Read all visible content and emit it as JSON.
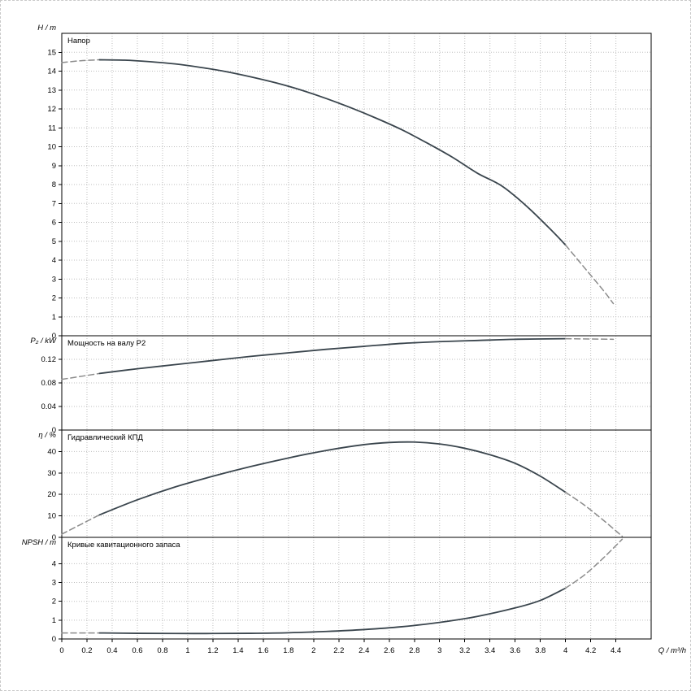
{
  "page": {
    "background": "#ffffff"
  },
  "colors": {
    "curve": "#3a454d",
    "dashed_curve": "#8c8c8c",
    "grid": "#bdbdbd",
    "axis": "#000000"
  },
  "chart_data": {
    "type": "line",
    "x_axis": {
      "label": "Q / m³/h",
      "min": 0,
      "max": 4.68,
      "grid": true,
      "tick_values": [
        0,
        0.2,
        0.4,
        0.6,
        0.8,
        1,
        1.2,
        1.4,
        1.6,
        1.8,
        2,
        2.2,
        2.4,
        2.6,
        2.8,
        3,
        3.2,
        3.4,
        3.6,
        3.8,
        4,
        4.2,
        4.4
      ],
      "tick_labels": [
        "0",
        "0.2",
        "0.4",
        "0.6",
        "0.8",
        "1",
        "1.2",
        "1.4",
        "1.6",
        "1.8",
        "2",
        "2.2",
        "2.4",
        "2.6",
        "2.8",
        "3",
        "3.2",
        "3.4",
        "3.6",
        "3.8",
        "4",
        "4.2",
        "4.4"
      ]
    },
    "panels": [
      {
        "title": "Напор",
        "y_label": "H / m",
        "ylim": [
          0,
          16
        ],
        "y_ticks": [
          0,
          1,
          2,
          3,
          4,
          5,
          6,
          7,
          8,
          9,
          10,
          11,
          12,
          13,
          14,
          15
        ],
        "y_tick_labels": [
          "0",
          "1",
          "2",
          "3",
          "4",
          "5",
          "6",
          "7",
          "8",
          "9",
          "10",
          "11",
          "12",
          "13",
          "14",
          "15"
        ],
        "series": [
          {
            "name": "head-curve-dashed-left",
            "style": "dashed",
            "points": [
              [
                0,
                14.45
              ],
              [
                0.15,
                14.55
              ],
              [
                0.3,
                14.6
              ]
            ]
          },
          {
            "name": "head-curve",
            "style": "solid",
            "points": [
              [
                0.3,
                14.6
              ],
              [
                0.5,
                14.58
              ],
              [
                0.7,
                14.5
              ],
              [
                0.9,
                14.38
              ],
              [
                1.1,
                14.2
              ],
              [
                1.3,
                13.98
              ],
              [
                1.5,
                13.7
              ],
              [
                1.7,
                13.38
              ],
              [
                1.9,
                13.0
              ],
              [
                2.1,
                12.55
              ],
              [
                2.3,
                12.05
              ],
              [
                2.5,
                11.5
              ],
              [
                2.7,
                10.9
              ],
              [
                2.9,
                10.2
              ],
              [
                3.1,
                9.45
              ],
              [
                3.3,
                8.6
              ],
              [
                3.5,
                7.9
              ],
              [
                3.7,
                6.8
              ],
              [
                3.9,
                5.5
              ],
              [
                4.0,
                4.8
              ]
            ]
          },
          {
            "name": "head-curve-dashed-right",
            "style": "dashed",
            "points": [
              [
                4.0,
                4.8
              ],
              [
                4.15,
                3.6
              ],
              [
                4.3,
                2.4
              ],
              [
                4.38,
                1.7
              ]
            ]
          }
        ]
      },
      {
        "title": "Мощность на валу P2",
        "y_label": "P₂ / kW",
        "ylim": [
          0,
          0.16
        ],
        "y_ticks": [
          0,
          0.04,
          0.08,
          0.12
        ],
        "y_tick_labels": [
          "0",
          "0.04",
          "0.08",
          "0.12"
        ],
        "series": [
          {
            "name": "power-curve-dashed-left",
            "style": "dashed",
            "points": [
              [
                0,
                0.086
              ],
              [
                0.3,
                0.096
              ]
            ]
          },
          {
            "name": "power-curve",
            "style": "solid",
            "points": [
              [
                0.3,
                0.096
              ],
              [
                0.6,
                0.104
              ],
              [
                0.9,
                0.111
              ],
              [
                1.2,
                0.118
              ],
              [
                1.5,
                0.125
              ],
              [
                1.8,
                0.131
              ],
              [
                2.1,
                0.137
              ],
              [
                2.4,
                0.142
              ],
              [
                2.7,
                0.147
              ],
              [
                3.0,
                0.15
              ],
              [
                3.3,
                0.152
              ],
              [
                3.6,
                0.154
              ],
              [
                4.0,
                0.155
              ]
            ]
          },
          {
            "name": "power-curve-dashed-right",
            "style": "dashed",
            "points": [
              [
                4.0,
                0.155
              ],
              [
                4.38,
                0.154
              ]
            ]
          }
        ]
      },
      {
        "title": "Гидравлический КПД",
        "y_label": "η / %",
        "ylim": [
          0,
          50
        ],
        "y_ticks": [
          0,
          10,
          20,
          30,
          40
        ],
        "y_tick_labels": [
          "0",
          "10",
          "20",
          "30",
          "40"
        ],
        "series": [
          {
            "name": "efficiency-curve-dashed-left",
            "style": "dashed",
            "points": [
              [
                0,
                1.5
              ],
              [
                0.15,
                6
              ],
              [
                0.3,
                10.5
              ]
            ]
          },
          {
            "name": "efficiency-curve",
            "style": "solid",
            "points": [
              [
                0.3,
                10.5
              ],
              [
                0.6,
                17.5
              ],
              [
                0.9,
                23.5
              ],
              [
                1.2,
                28.5
              ],
              [
                1.5,
                33
              ],
              [
                1.8,
                37
              ],
              [
                2.1,
                40.5
              ],
              [
                2.4,
                43.2
              ],
              [
                2.6,
                44.2
              ],
              [
                2.8,
                44.4
              ],
              [
                3.0,
                43.5
              ],
              [
                3.2,
                41.5
              ],
              [
                3.4,
                38.5
              ],
              [
                3.6,
                34.5
              ],
              [
                3.8,
                28.5
              ],
              [
                4.0,
                21
              ]
            ]
          },
          {
            "name": "efficiency-curve-dashed-right",
            "style": "dashed",
            "points": [
              [
                4.0,
                21
              ],
              [
                4.15,
                15
              ],
              [
                4.3,
                8
              ],
              [
                4.45,
                0.5
              ]
            ]
          }
        ]
      },
      {
        "title": "Кривые кавитационного запаса",
        "y_label": "NPSH / m",
        "ylim": [
          0,
          5.4
        ],
        "y_ticks": [
          0,
          1,
          2,
          3,
          4
        ],
        "y_tick_labels": [
          "0",
          "1",
          "2",
          "3",
          "4"
        ],
        "series": [
          {
            "name": "npsh-curve-dashed-left",
            "style": "dashed",
            "points": [
              [
                0,
                0.32
              ],
              [
                0.3,
                0.32
              ]
            ]
          },
          {
            "name": "npsh-curve",
            "style": "solid",
            "points": [
              [
                0.3,
                0.32
              ],
              [
                0.6,
                0.3
              ],
              [
                0.9,
                0.29
              ],
              [
                1.2,
                0.29
              ],
              [
                1.5,
                0.3
              ],
              [
                1.8,
                0.33
              ],
              [
                2.1,
                0.4
              ],
              [
                2.4,
                0.5
              ],
              [
                2.7,
                0.65
              ],
              [
                3.0,
                0.88
              ],
              [
                3.3,
                1.2
              ],
              [
                3.6,
                1.65
              ],
              [
                3.8,
                2.05
              ],
              [
                4.0,
                2.7
              ]
            ]
          },
          {
            "name": "npsh-curve-dashed-right",
            "style": "dashed",
            "points": [
              [
                4.0,
                2.7
              ],
              [
                4.15,
                3.4
              ],
              [
                4.3,
                4.3
              ],
              [
                4.45,
                5.3
              ]
            ]
          }
        ]
      }
    ]
  }
}
